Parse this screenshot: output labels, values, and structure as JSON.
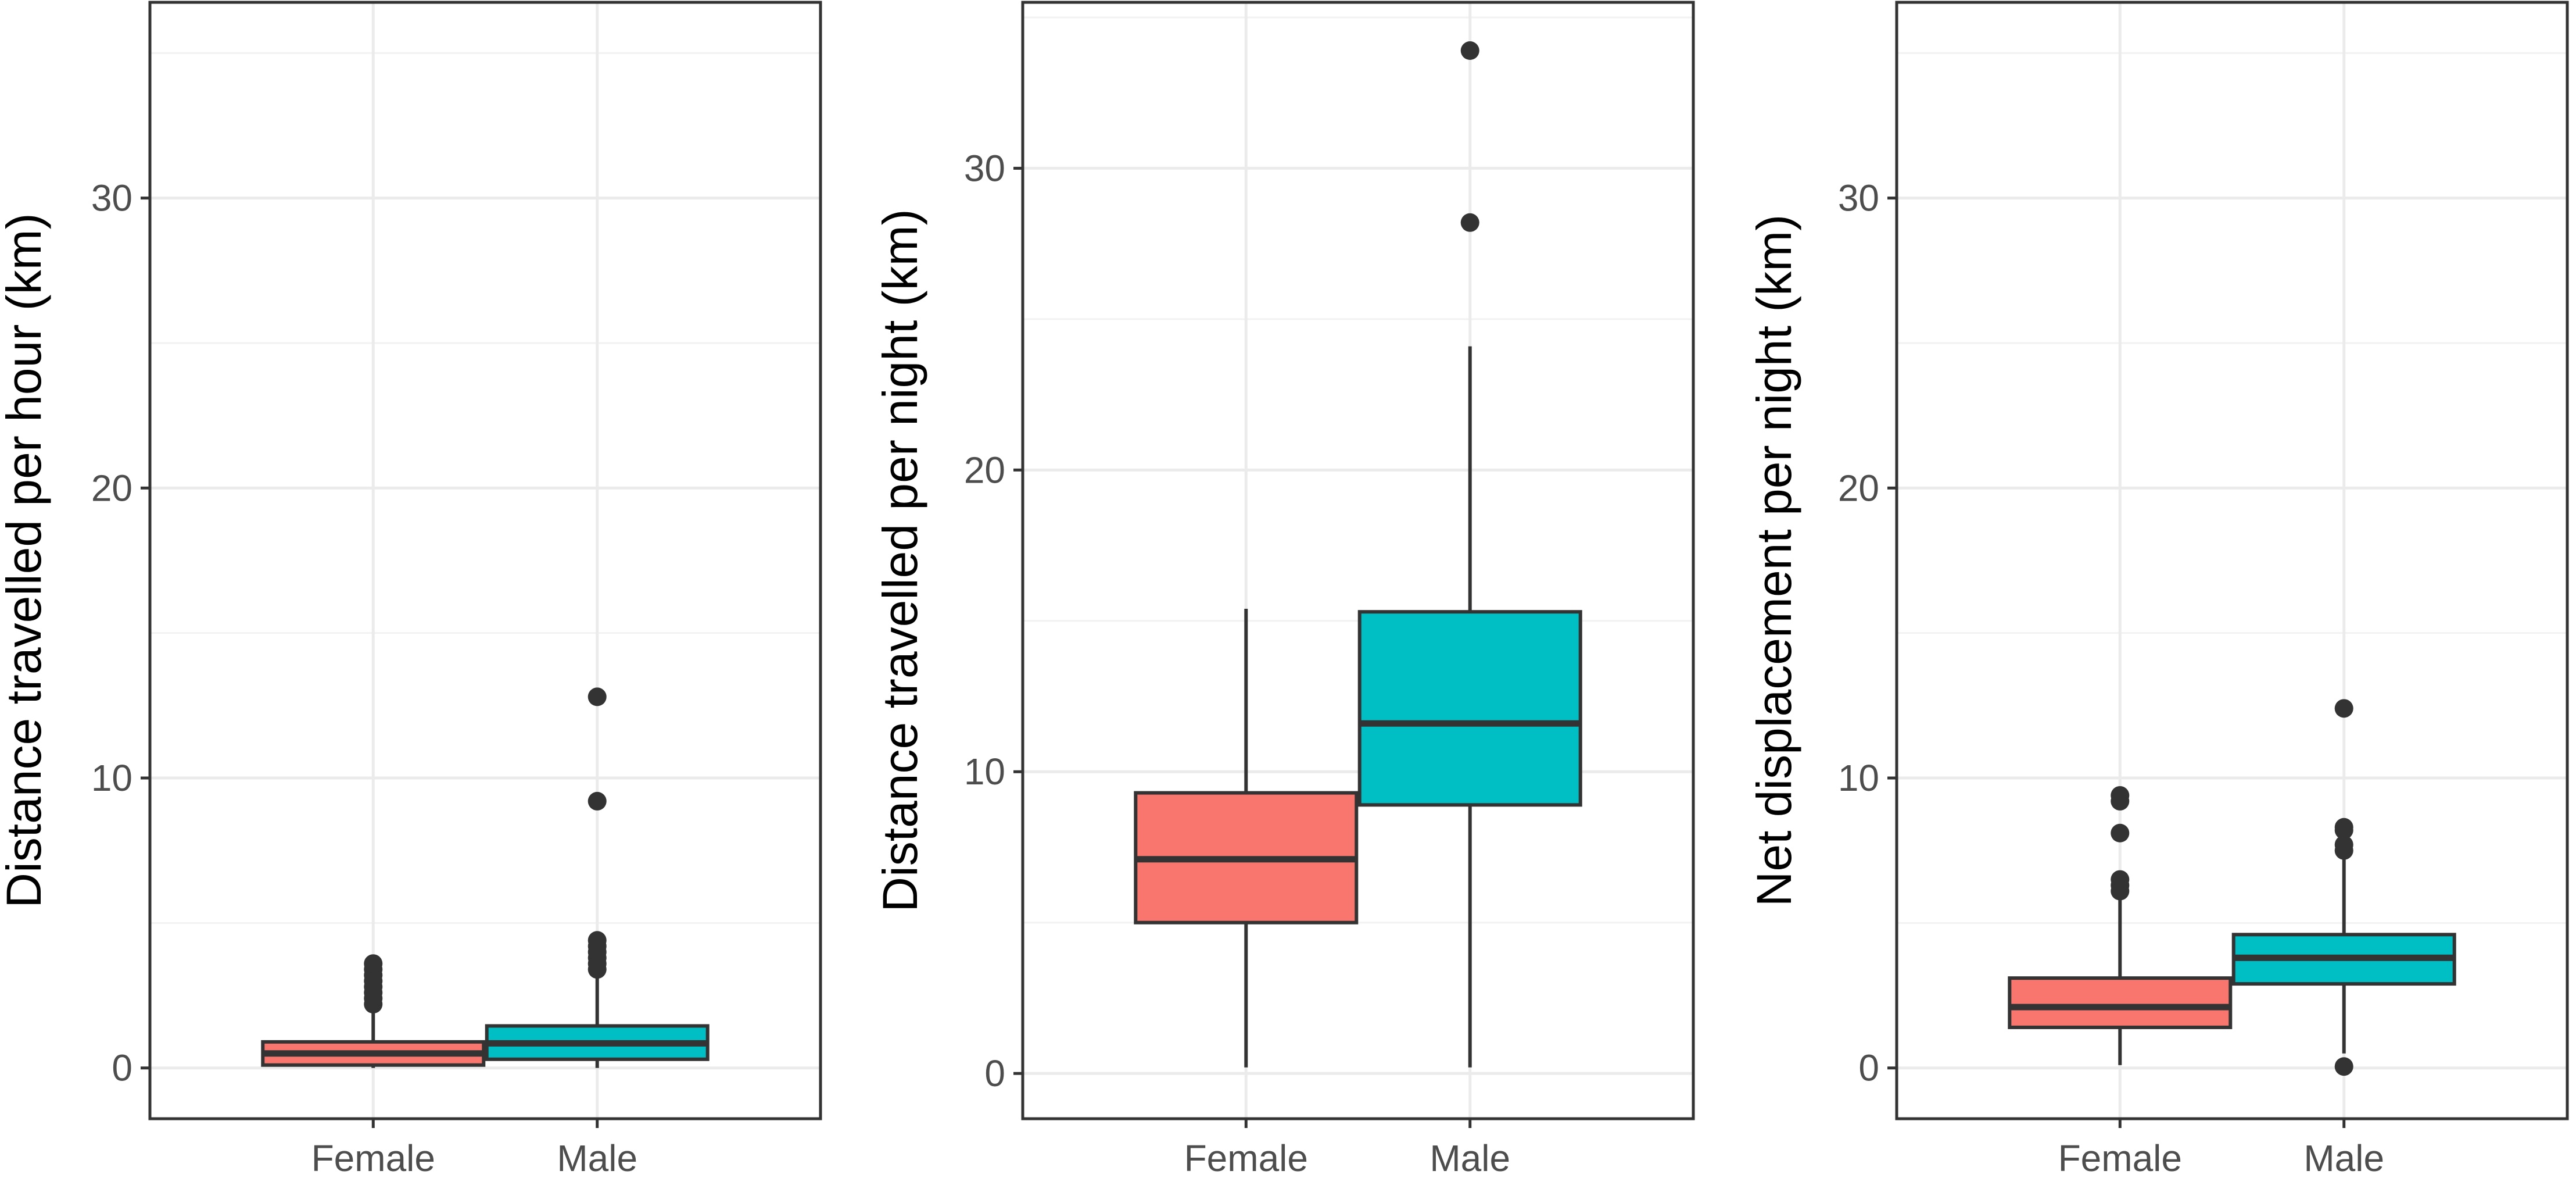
{
  "chart_data": [
    {
      "type": "box",
      "ylabel": "Distance travelled per hour (km)",
      "xlabel": "",
      "categories": [
        "Female",
        "Male"
      ],
      "ylim": [
        -1.75,
        36.75
      ],
      "yticks": [
        0,
        10,
        20,
        30
      ],
      "grid": true,
      "boxes": [
        {
          "group": "Female",
          "color": "#F8766D",
          "q1": 0.1,
          "median": 0.5,
          "q3": 0.9,
          "whisker_low": 0.0,
          "whisker_high": 1.9,
          "outliers": [
            2.2,
            2.4,
            2.6,
            2.8,
            3.0,
            3.2,
            3.4,
            3.6
          ]
        },
        {
          "group": "Male",
          "color": "#00BFC4",
          "q1": 0.3,
          "median": 0.85,
          "q3": 1.45,
          "whisker_low": 0.0,
          "whisker_high": 3.2,
          "outliers": [
            3.4,
            3.6,
            3.8,
            4.0,
            4.2,
            4.4,
            9.2,
            12.8
          ]
        }
      ]
    },
    {
      "type": "box",
      "ylabel": "Distance travelled per night (km)",
      "xlabel": "",
      "categories": [
        "Female",
        "Male"
      ],
      "ylim": [
        -1.5,
        35.5
      ],
      "yticks": [
        0,
        10,
        20,
        30
      ],
      "grid": true,
      "boxes": [
        {
          "group": "Female",
          "color": "#F8766D",
          "q1": 5.0,
          "median": 7.1,
          "q3": 9.3,
          "whisker_low": 0.2,
          "whisker_high": 15.4,
          "outliers": []
        },
        {
          "group": "Male",
          "color": "#00BFC4",
          "q1": 8.9,
          "median": 11.6,
          "q3": 15.3,
          "whisker_low": 0.2,
          "whisker_high": 24.1,
          "outliers": [
            28.2,
            33.9
          ]
        }
      ]
    },
    {
      "type": "box",
      "ylabel": "Net displacement per night (km)",
      "xlabel": "",
      "categories": [
        "Female",
        "Male"
      ],
      "ylim": [
        -1.75,
        36.75
      ],
      "yticks": [
        0,
        10,
        20,
        30
      ],
      "grid": true,
      "boxes": [
        {
          "group": "Female",
          "color": "#F8766D",
          "q1": 1.4,
          "median": 2.1,
          "q3": 3.1,
          "whisker_low": 0.1,
          "whisker_high": 5.9,
          "outliers": [
            6.1,
            6.3,
            6.5,
            8.1,
            9.2,
            9.4
          ]
        },
        {
          "group": "Male",
          "color": "#00BFC4",
          "q1": 2.9,
          "median": 3.8,
          "q3": 4.6,
          "whisker_low": 0.5,
          "whisker_high": 7.2,
          "outliers": [
            0.05,
            7.5,
            7.7,
            8.2,
            8.3,
            12.4
          ]
        }
      ]
    }
  ]
}
